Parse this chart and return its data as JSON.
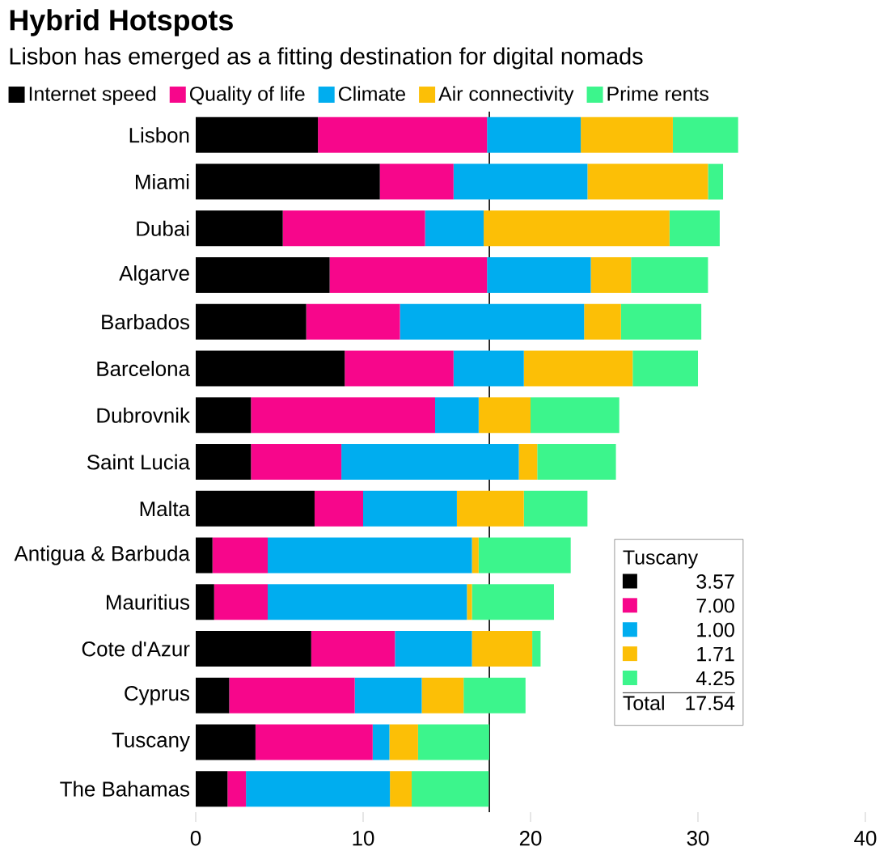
{
  "chart_data": {
    "type": "bar",
    "orientation": "horizontal",
    "stacked": true,
    "title": "Hybrid Hotspots",
    "subtitle": "Lisbon has emerged as a fitting destination for digital nomads",
    "categories": [
      "Lisbon",
      "Miami",
      "Dubai",
      "Algarve",
      "Barbados",
      "Barcelona",
      "Dubrovnik",
      "Saint Lucia",
      "Malta",
      "Antigua & Barbuda",
      "Mauritius",
      "Cote d'Azur",
      "Cyprus",
      "Tuscany",
      "The Bahamas"
    ],
    "series": [
      {
        "name": "Internet speed",
        "color": "#000000",
        "values": [
          7.3,
          11.0,
          5.2,
          8.0,
          6.6,
          8.9,
          3.3,
          3.3,
          7.1,
          1.0,
          1.1,
          6.9,
          2.0,
          3.57,
          1.9
        ]
      },
      {
        "name": "Quality of life",
        "color": "#f7068b",
        "values": [
          10.1,
          4.4,
          8.5,
          9.4,
          5.6,
          6.5,
          11.0,
          5.4,
          2.9,
          3.3,
          3.2,
          5.0,
          7.5,
          7.0,
          1.1
        ]
      },
      {
        "name": "Climate",
        "color": "#00adef",
        "values": [
          5.6,
          8.0,
          3.5,
          6.2,
          11.0,
          4.2,
          2.6,
          10.6,
          5.6,
          12.2,
          11.9,
          4.6,
          4.0,
          1.0,
          8.6
        ]
      },
      {
        "name": "Air connectivity",
        "color": "#fcbf06",
        "values": [
          5.5,
          7.2,
          11.1,
          2.4,
          2.2,
          6.5,
          3.1,
          1.1,
          4.0,
          0.4,
          0.3,
          3.6,
          2.5,
          1.71,
          1.3
        ]
      },
      {
        "name": "Prime rents",
        "color": "#3cf58c",
        "values": [
          3.9,
          0.9,
          3.0,
          4.6,
          4.8,
          3.9,
          5.3,
          4.7,
          3.8,
          5.5,
          4.9,
          0.5,
          3.7,
          4.25,
          4.6
        ]
      }
    ],
    "xlim": [
      0,
      40
    ],
    "xticks": [
      0,
      10,
      20,
      30,
      40
    ],
    "legend": "top",
    "ref_lines": [
      {
        "axis": "x",
        "value": 17.54,
        "color": "#000000"
      }
    ],
    "annotations": [
      "Tuscany",
      "3.57",
      "7.00",
      "1.00",
      "1.71",
      "4.25",
      "Total",
      "17.54"
    ]
  }
}
